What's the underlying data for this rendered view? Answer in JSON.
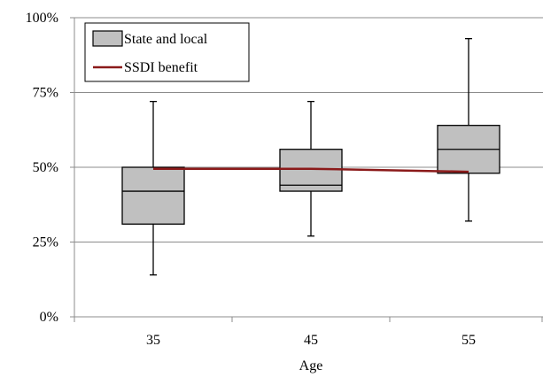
{
  "chart_data": {
    "type": "boxplot",
    "xlabel": "Age",
    "ylabel": "",
    "ylim": [
      0,
      100
    ],
    "yticks": [
      0,
      25,
      50,
      75,
      100
    ],
    "ytick_labels": [
      "0%",
      "25%",
      "50%",
      "75%",
      "100%"
    ],
    "categories": [
      "35",
      "45",
      "55"
    ],
    "grid": true,
    "legend": {
      "placement": "top-left",
      "entries": [
        "State and local",
        "SSDI benefit"
      ]
    },
    "series": [
      {
        "name": "State and local",
        "kind": "box",
        "color": "#c0c0c0",
        "boxes": [
          {
            "category": "35",
            "min": 14,
            "q1": 31,
            "median": 42,
            "q3": 50,
            "max": 72
          },
          {
            "category": "45",
            "min": 27,
            "q1": 42,
            "median": 44,
            "q3": 56,
            "max": 72
          },
          {
            "category": "55",
            "min": 32,
            "q1": 48,
            "median": 56,
            "q3": 64,
            "max": 93
          }
        ]
      },
      {
        "name": "SSDI benefit",
        "kind": "line",
        "color": "#8b1a1a",
        "values": [
          49.5,
          49.5,
          48.5
        ]
      }
    ]
  }
}
